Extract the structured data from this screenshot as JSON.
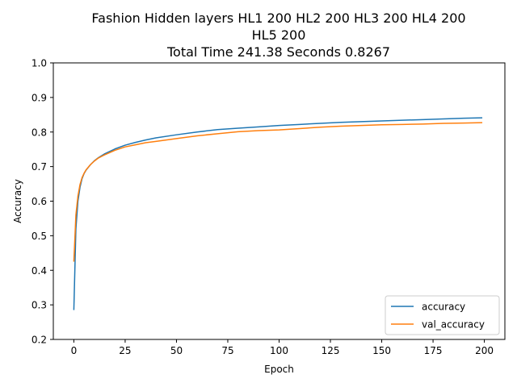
{
  "chart_data": {
    "type": "line",
    "title_lines": [
      "Fashion Hidden layers HL1 200 HL2 200 HL3 200 HL4 200",
      "HL5 200",
      "Total Time  241.38 Seconds  0.8267"
    ],
    "xlabel": "Epoch",
    "ylabel": "Accuracy",
    "xlim": [
      -10,
      210
    ],
    "ylim": [
      0.2,
      1.0
    ],
    "xticks": [
      0,
      25,
      50,
      75,
      100,
      125,
      150,
      175,
      200
    ],
    "yticks": [
      0.2,
      0.3,
      0.4,
      0.5,
      0.6,
      0.7,
      0.8,
      0.9,
      1.0
    ],
    "grid": false,
    "legend_position": "lower-right",
    "x": [
      0,
      1,
      2,
      3,
      4,
      5,
      6,
      8,
      10,
      12,
      15,
      20,
      25,
      30,
      35,
      40,
      50,
      60,
      70,
      80,
      90,
      100,
      110,
      120,
      130,
      140,
      150,
      160,
      170,
      180,
      190,
      199
    ],
    "series": [
      {
        "name": "accuracy",
        "color": "#1f77b4",
        "values": [
          0.285,
          0.52,
          0.6,
          0.64,
          0.665,
          0.68,
          0.69,
          0.705,
          0.717,
          0.726,
          0.737,
          0.751,
          0.762,
          0.77,
          0.777,
          0.783,
          0.792,
          0.8,
          0.807,
          0.811,
          0.815,
          0.819,
          0.822,
          0.825,
          0.828,
          0.83,
          0.832,
          0.834,
          0.836,
          0.838,
          0.84,
          0.841
        ]
      },
      {
        "name": "val_accuracy",
        "color": "#ff7f0e",
        "values": [
          0.425,
          0.56,
          0.615,
          0.648,
          0.668,
          0.681,
          0.691,
          0.705,
          0.716,
          0.725,
          0.734,
          0.747,
          0.757,
          0.763,
          0.769,
          0.773,
          0.781,
          0.789,
          0.795,
          0.801,
          0.804,
          0.806,
          0.81,
          0.814,
          0.817,
          0.819,
          0.821,
          0.822,
          0.823,
          0.825,
          0.826,
          0.827
        ]
      }
    ]
  }
}
